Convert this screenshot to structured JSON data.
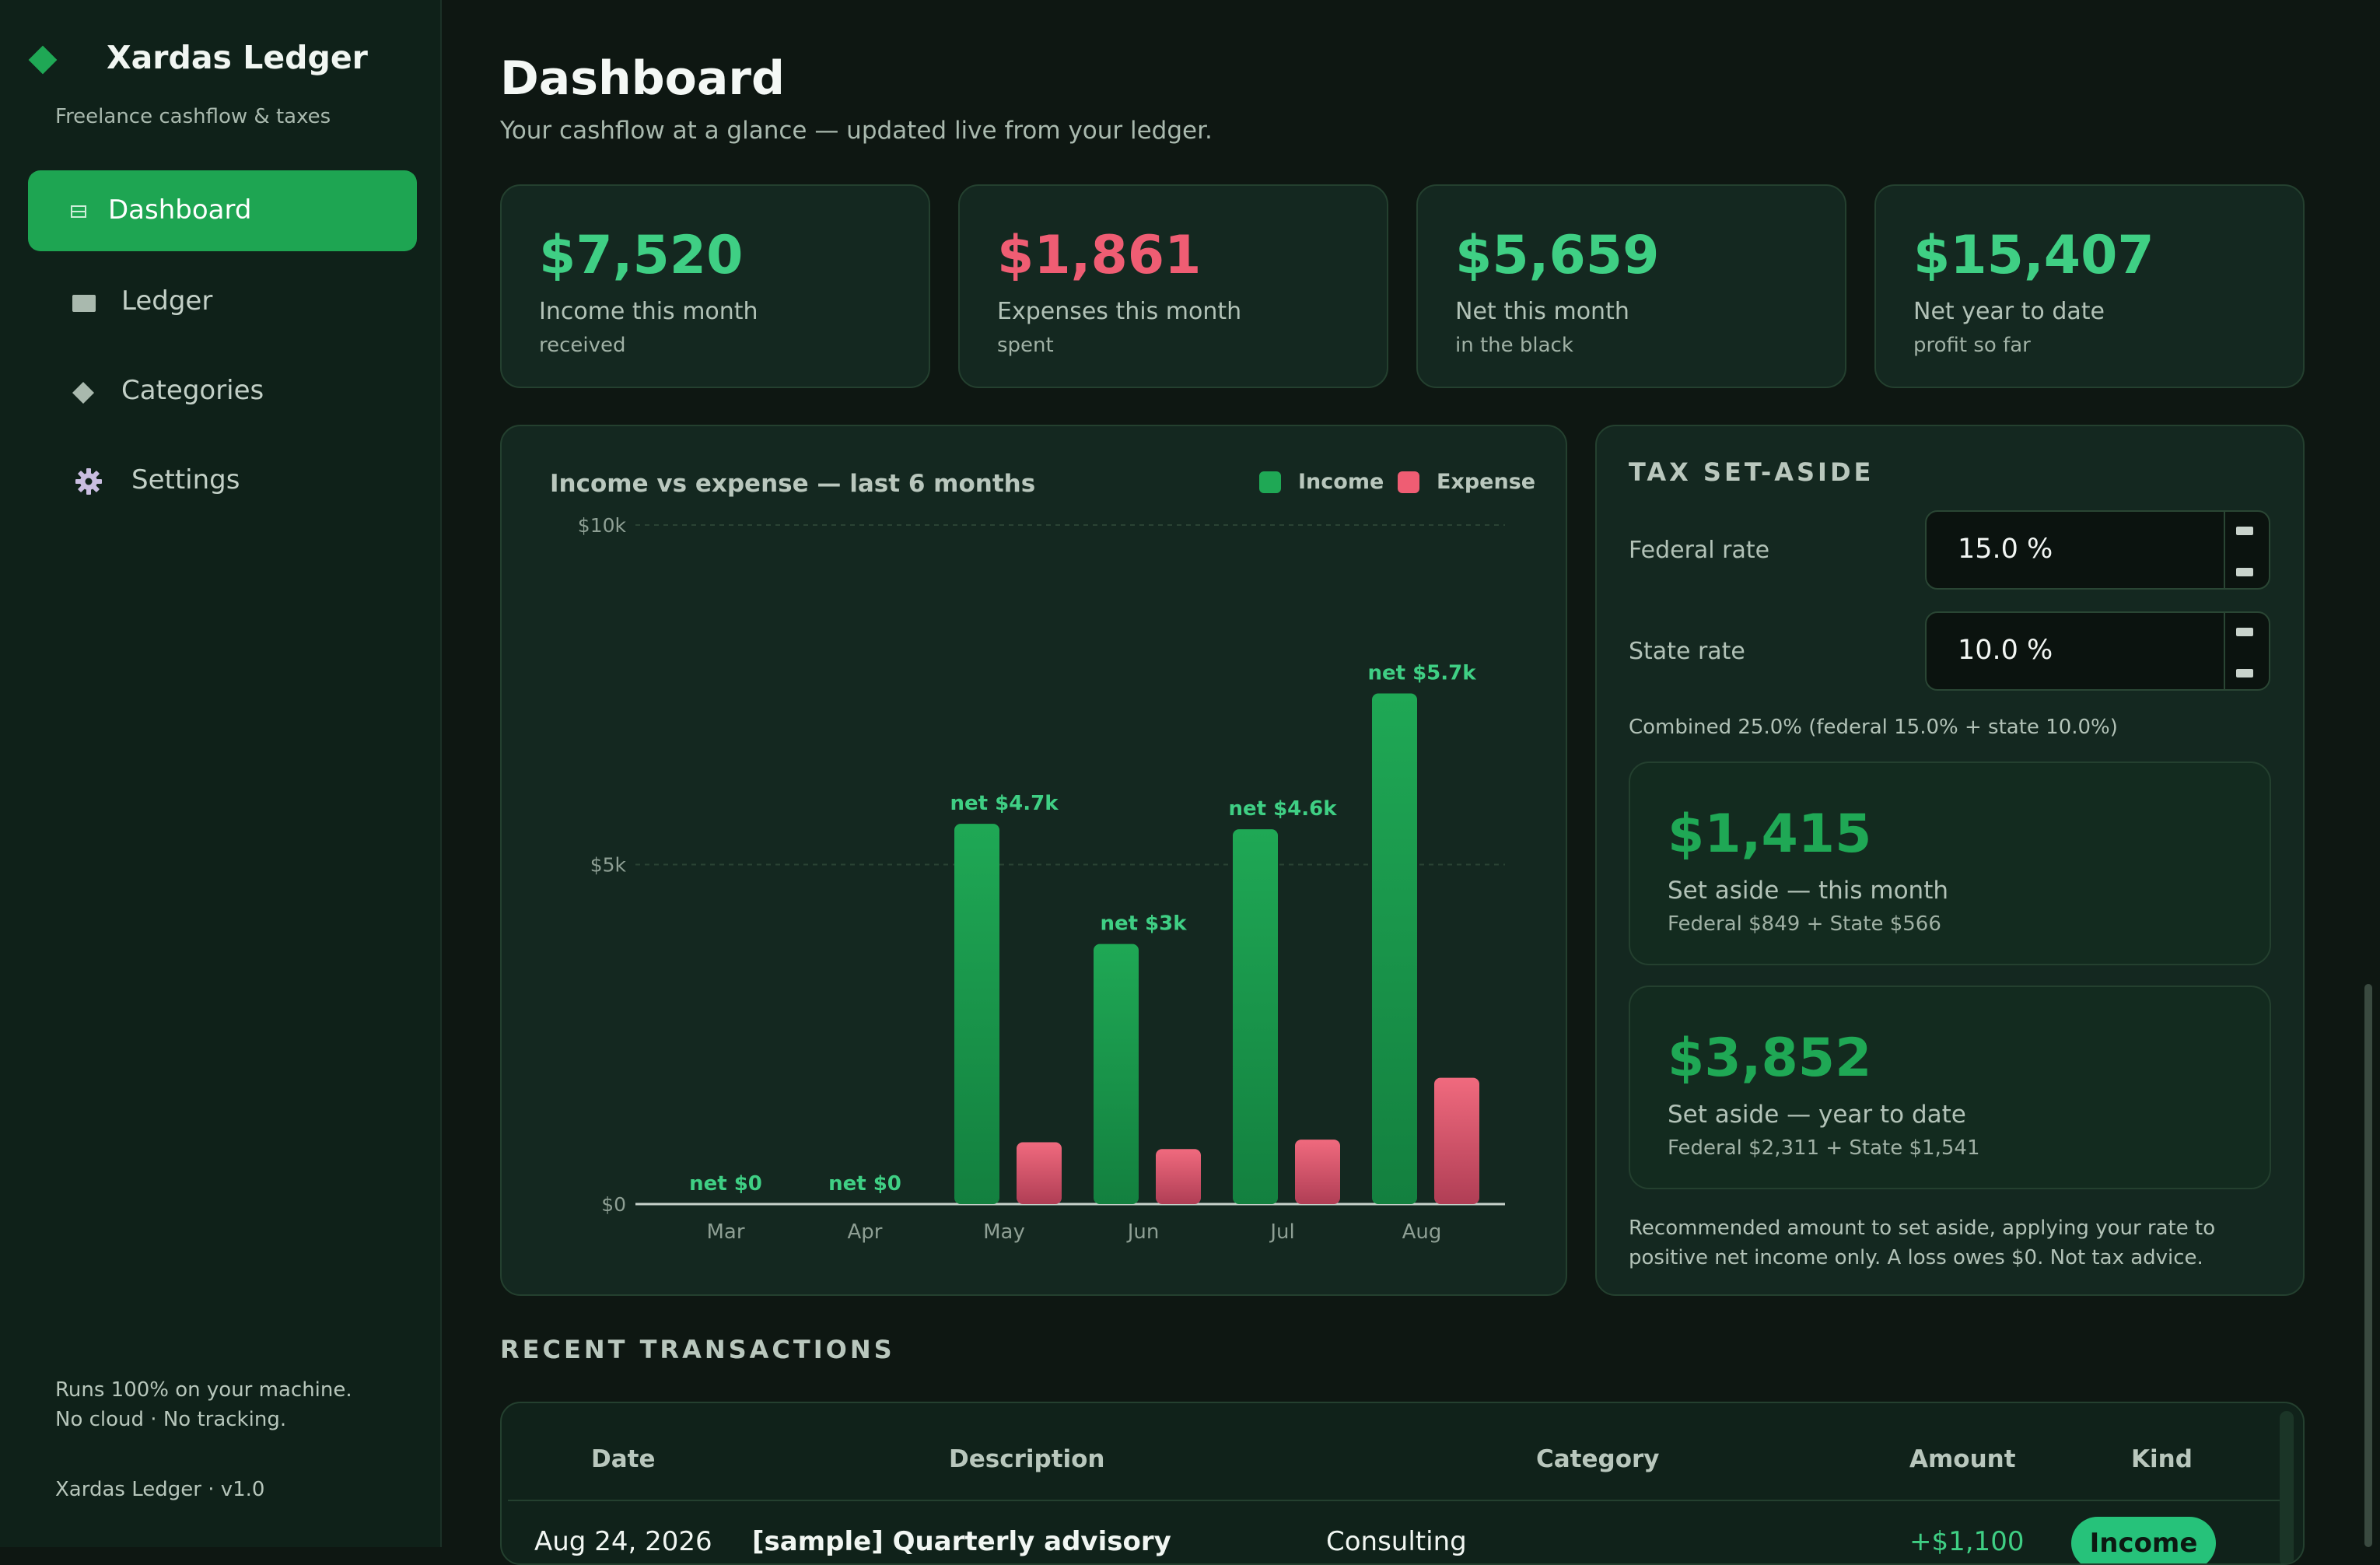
{
  "app": {
    "name": "Xardas Ledger",
    "tagline": "Freelance cashflow & taxes",
    "privacy_line1": "Runs 100% on your machine.",
    "privacy_line2": "No cloud · No tracking.",
    "version": "Xardas Ledger · v1.0"
  },
  "nav": [
    {
      "label": "Dashboard",
      "icon": "dashboard-icon",
      "active": true
    },
    {
      "label": "Ledger",
      "icon": "ledger-icon",
      "active": false
    },
    {
      "label": "Categories",
      "icon": "categories-icon",
      "active": false
    },
    {
      "label": "Settings",
      "icon": "gear-icon",
      "active": false
    }
  ],
  "header": {
    "title": "Dashboard",
    "subtitle": "Your cashflow at a glance — updated live from your ledger."
  },
  "stats": [
    {
      "value": "$7,520",
      "label": "Income this month",
      "sub": "received",
      "color": "#3fcf84"
    },
    {
      "value": "$1,861",
      "label": "Expenses this month",
      "sub": "spent",
      "color": "#ef5d73"
    },
    {
      "value": "$5,659",
      "label": "Net this month",
      "sub": "in the black",
      "color": "#3fcf84"
    },
    {
      "value": "$15,407",
      "label": "Net year to date",
      "sub": "profit so far",
      "color": "#3fcf84"
    }
  ],
  "chart_panel": {
    "title": "Income vs expense — last 6 months",
    "legend": [
      {
        "label": "Income",
        "color": "#1fa855"
      },
      {
        "label": "Expense",
        "color": "#ef5d73"
      }
    ]
  },
  "chart_data": {
    "type": "bar",
    "title": "Income vs expense — last 6 months",
    "categories": [
      "Mar",
      "Apr",
      "May",
      "Jun",
      "Jul",
      "Aug"
    ],
    "series": [
      {
        "name": "Income",
        "values": [
          0,
          0,
          5600,
          3830,
          5520,
          7520
        ]
      },
      {
        "name": "Expense",
        "values": [
          0,
          0,
          910,
          810,
          950,
          1860
        ]
      }
    ],
    "net_labels": [
      "net $0",
      "net $0",
      "net $4.7k",
      "net $3k",
      "net $4.6k",
      "net $5.7k"
    ],
    "y_ticks": [
      {
        "value": 0,
        "label": "$0"
      },
      {
        "value": 5000,
        "label": "$5k"
      },
      {
        "value": 10000,
        "label": "$10k"
      }
    ],
    "ylim": [
      0,
      10000
    ],
    "grid": true,
    "legend_position": "top-right"
  },
  "tax": {
    "heading": "TAX SET-ASIDE",
    "federal_label": "Federal rate",
    "federal_value": "15.0 %",
    "state_label": "State rate",
    "state_value": "10.0 %",
    "combined": "Combined 25.0%  (federal 15.0% + state 10.0%)",
    "month": {
      "value": "$1,415",
      "label": "Set aside — this month",
      "detail": "Federal $849  +  State $566"
    },
    "ytd": {
      "value": "$3,852",
      "label": "Set aside — year to date",
      "detail": "Federal $2,311  +  State $1,541"
    },
    "note": "Recommended amount to set aside, applying your rate to positive net income only. A loss owes $0. Not tax advice."
  },
  "transactions": {
    "heading": "RECENT TRANSACTIONS",
    "columns": [
      "Date",
      "Description",
      "Category",
      "Amount",
      "Kind"
    ],
    "rows": [
      {
        "date": "Aug 24, 2026",
        "description": "[sample] Quarterly advisory",
        "category": "Consulting",
        "amount": "+$1,100",
        "kind": "Income"
      }
    ]
  }
}
